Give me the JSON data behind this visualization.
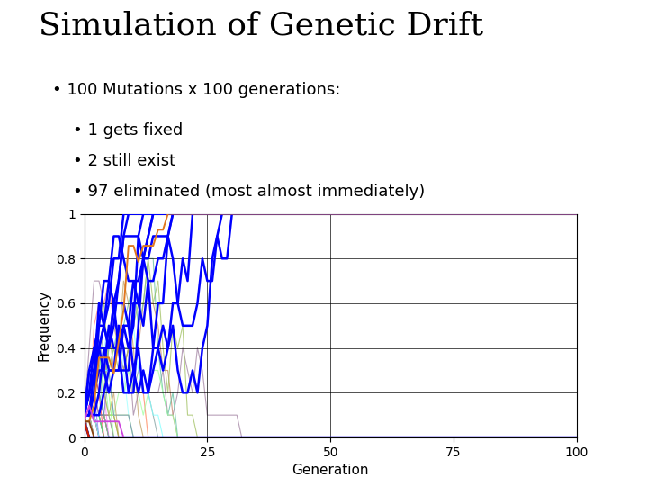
{
  "title": "Simulation of Genetic Drift",
  "bullet1": "• 100 Mutations x 100 generations:",
  "bullet2": "    • 1 gets fixed",
  "bullet3": "    • 2 still exist",
  "bullet4": "    • 97 eliminated (most almost immediately)",
  "xlabel": "Generation",
  "ylabel": "Frequency",
  "xlim": [
    0,
    100
  ],
  "ylim": [
    0,
    1
  ],
  "xticks": [
    0,
    25,
    50,
    75,
    100
  ],
  "yticks": [
    0,
    0.2,
    0.4,
    0.6,
    0.8,
    1.0
  ],
  "bg_color": "#ffffff",
  "title_fontsize": 26,
  "text_fontsize": 13,
  "axis_fontsize": 10,
  "xlabel_fontsize": 11,
  "prominent_colors": [
    "blue",
    "#8b2500",
    "#cc3300",
    "#e87820",
    "#cc44cc",
    "#8b4513"
  ],
  "n_mutations": 100,
  "n_generations": 100
}
